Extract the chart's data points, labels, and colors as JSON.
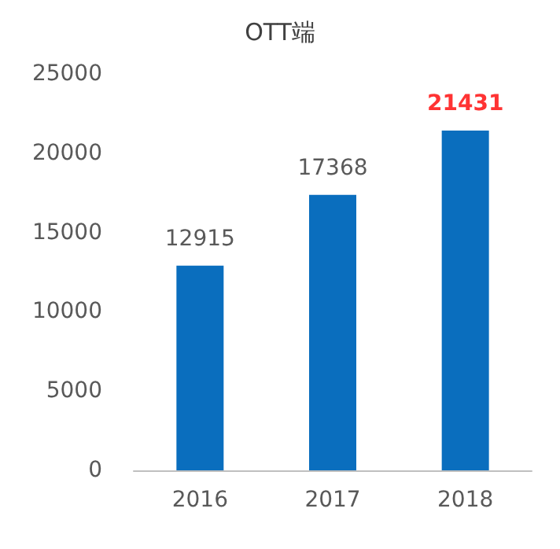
{
  "chart_data": {
    "type": "bar",
    "title": "OTT端",
    "categories": [
      "2016",
      "2017",
      "2018"
    ],
    "values": [
      12915,
      17368,
      21431
    ],
    "value_labels": [
      "12915",
      "17368",
      null
    ],
    "annotations": [
      {
        "text": "21431",
        "x": "2018",
        "y": 21431
      }
    ],
    "color": "#0a6ebe",
    "ylim": [
      0,
      25000
    ],
    "yticks": [
      0,
      5000,
      10000,
      15000,
      20000,
      25000
    ],
    "grid": false
  }
}
